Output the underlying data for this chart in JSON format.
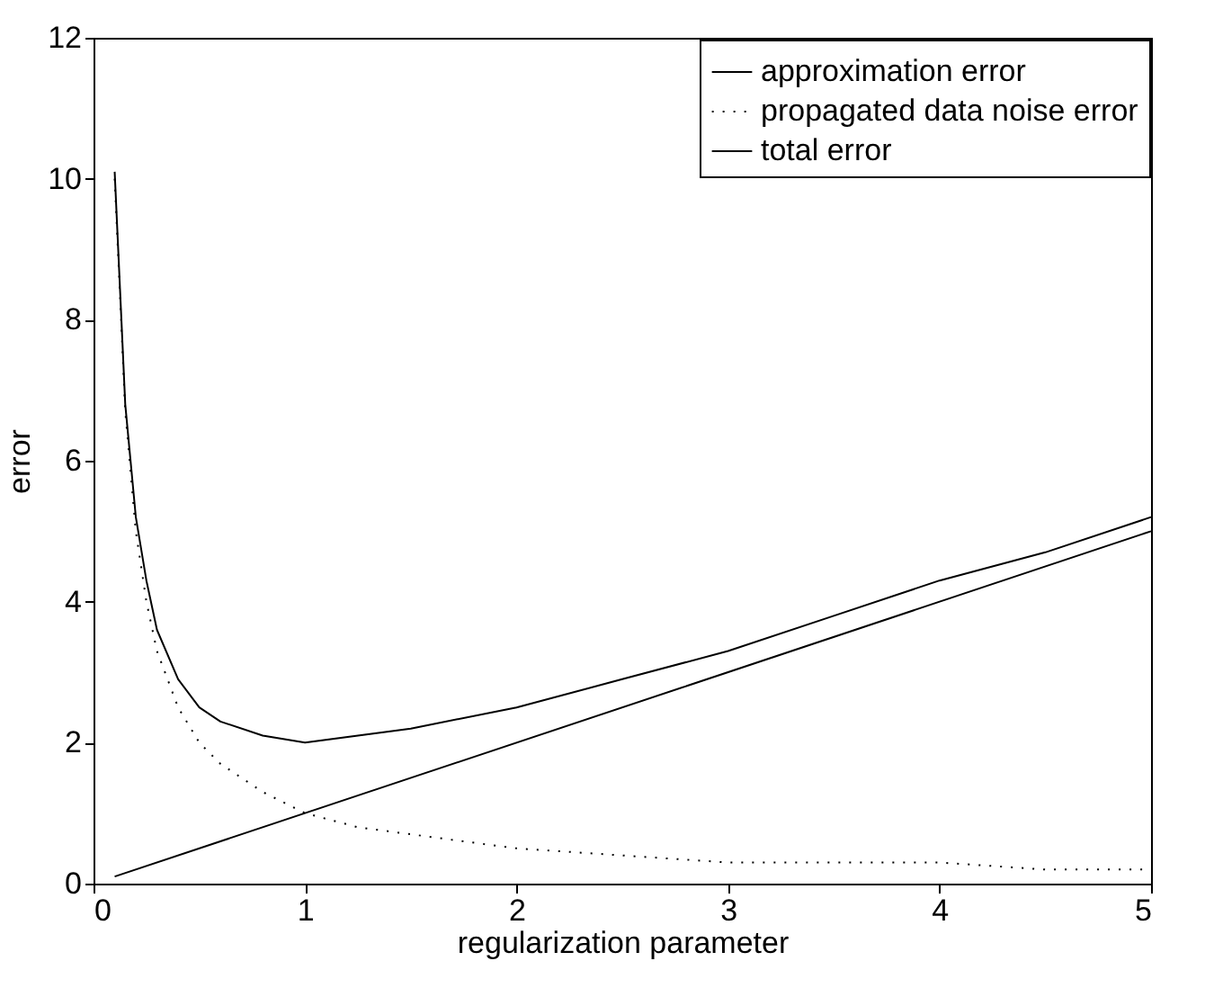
{
  "chart_data": {
    "type": "line",
    "xlabel": "regularization parameter",
    "ylabel": "error",
    "xlim": [
      0,
      5
    ],
    "ylim": [
      0,
      12
    ],
    "xticks": [
      0,
      1,
      2,
      3,
      4,
      5
    ],
    "yticks": [
      0,
      2,
      4,
      6,
      8,
      10,
      12
    ],
    "grid": false,
    "legend": "top right",
    "series": [
      {
        "name": "approximation error",
        "color": "#000000",
        "line_style": "solid",
        "x": [
          0.1,
          5
        ],
        "values": [
          0.1,
          5
        ]
      },
      {
        "name": "propagated data noise error",
        "color": "#000000",
        "line_style": "dotted",
        "x": [
          0.1,
          0.15,
          0.2,
          0.25,
          0.3,
          0.4,
          0.5,
          0.6,
          0.8,
          1,
          1.25,
          1.5,
          2,
          2.5,
          3,
          3.5,
          4,
          4.5,
          5
        ],
        "values": [
          10,
          6.7,
          5,
          4,
          3.3,
          2.5,
          2,
          1.7,
          1.3,
          1,
          0.8,
          0.7,
          0.5,
          0.4,
          0.3,
          0.3,
          0.3,
          0.2,
          0.2
        ]
      },
      {
        "name": "total error",
        "color": "#000000",
        "line_style": "solid",
        "x": [
          0.1,
          0.15,
          0.2,
          0.25,
          0.3,
          0.4,
          0.5,
          0.6,
          0.8,
          1,
          1.25,
          1.5,
          2,
          2.5,
          3,
          3.5,
          4,
          4.5,
          5
        ],
        "values": [
          10.1,
          6.8,
          5.2,
          4.3,
          3.6,
          2.9,
          2.5,
          2.3,
          2.1,
          2,
          2.1,
          2.2,
          2.5,
          2.9,
          3.3,
          3.8,
          4.3,
          4.7,
          5.2
        ]
      }
    ]
  }
}
